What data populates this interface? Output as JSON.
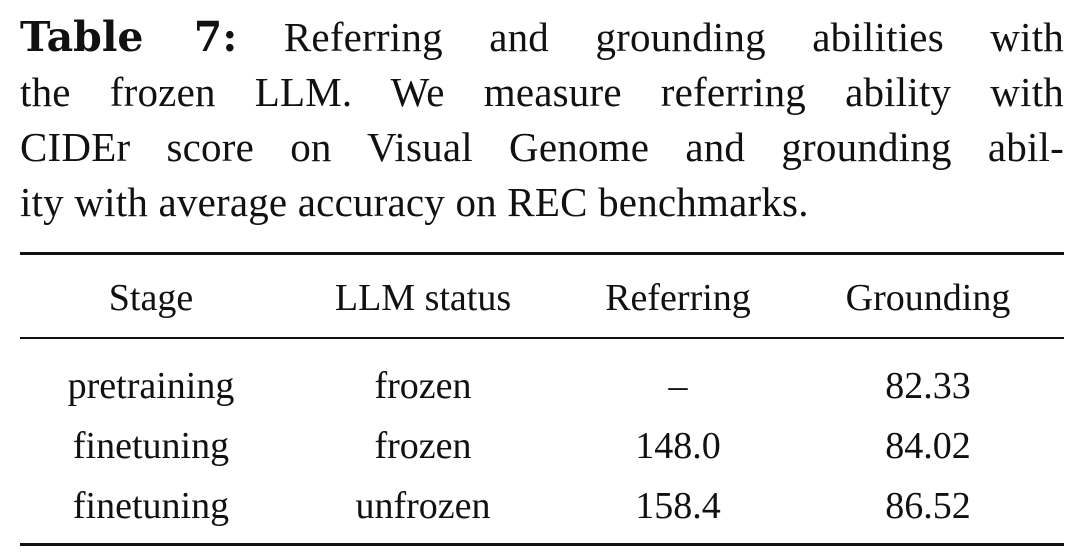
{
  "caption": {
    "label": "Table 7:",
    "lines": [
      " Referring and grounding abilities with",
      "the frozen LLM. We measure referring ability with",
      "CIDEr score on Visual Genome and grounding abil-",
      "ity with average accuracy on REC benchmarks."
    ]
  },
  "table": {
    "headers": [
      "Stage",
      "LLM status",
      "Referring",
      "Grounding"
    ],
    "rows": [
      [
        "pretraining",
        "frozen",
        "–",
        "82.33"
      ],
      [
        "finetuning",
        "frozen",
        "148.0",
        "84.02"
      ],
      [
        "finetuning",
        "unfrozen",
        "158.4",
        "86.52"
      ]
    ]
  }
}
